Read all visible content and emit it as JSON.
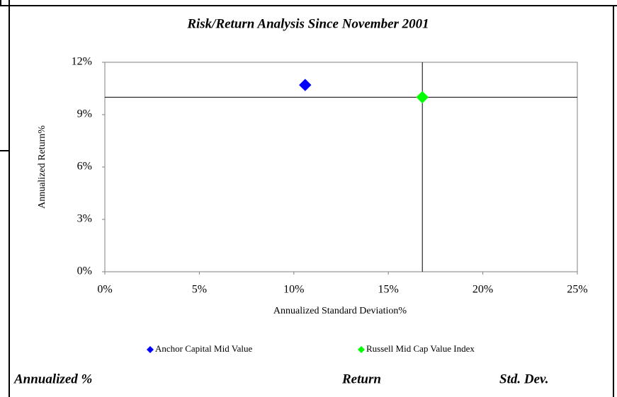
{
  "chart_data": {
    "type": "scatter",
    "title": "Risk/Return Analysis Since November 2001",
    "x_label": "Annualized Standard Deviation%",
    "y_label": "Annualized Return%",
    "xlim": [
      0,
      25
    ],
    "xticks": [
      {
        "value": 0,
        "label": "0%"
      },
      {
        "value": 5,
        "label": "5%"
      },
      {
        "value": 10,
        "label": "10%"
      },
      {
        "value": 15,
        "label": "15%"
      },
      {
        "value": 20,
        "label": "20%"
      },
      {
        "value": 25,
        "label": "25%"
      }
    ],
    "ylim": [
      0,
      12
    ],
    "yticks": [
      {
        "value": 0,
        "label": "0%"
      },
      {
        "value": 3,
        "label": "3%"
      },
      {
        "value": 6,
        "label": "6%"
      },
      {
        "value": 9,
        "label": "9%"
      },
      {
        "value": 12,
        "label": "12%"
      }
    ],
    "grid": false,
    "legend": "bottom",
    "series": [
      {
        "name": "Anchor Capital Mid Value",
        "color": "#0000ff",
        "x": [
          10.6
        ],
        "values": [
          10.7
        ]
      },
      {
        "name": "Russell Mid Cap Value Index",
        "color": "#00ff00",
        "x": [
          16.8
        ],
        "values": [
          10.0
        ]
      }
    ]
  },
  "table": {
    "headers": [
      "Annualized %",
      "Return",
      "Std. Dev."
    ]
  }
}
